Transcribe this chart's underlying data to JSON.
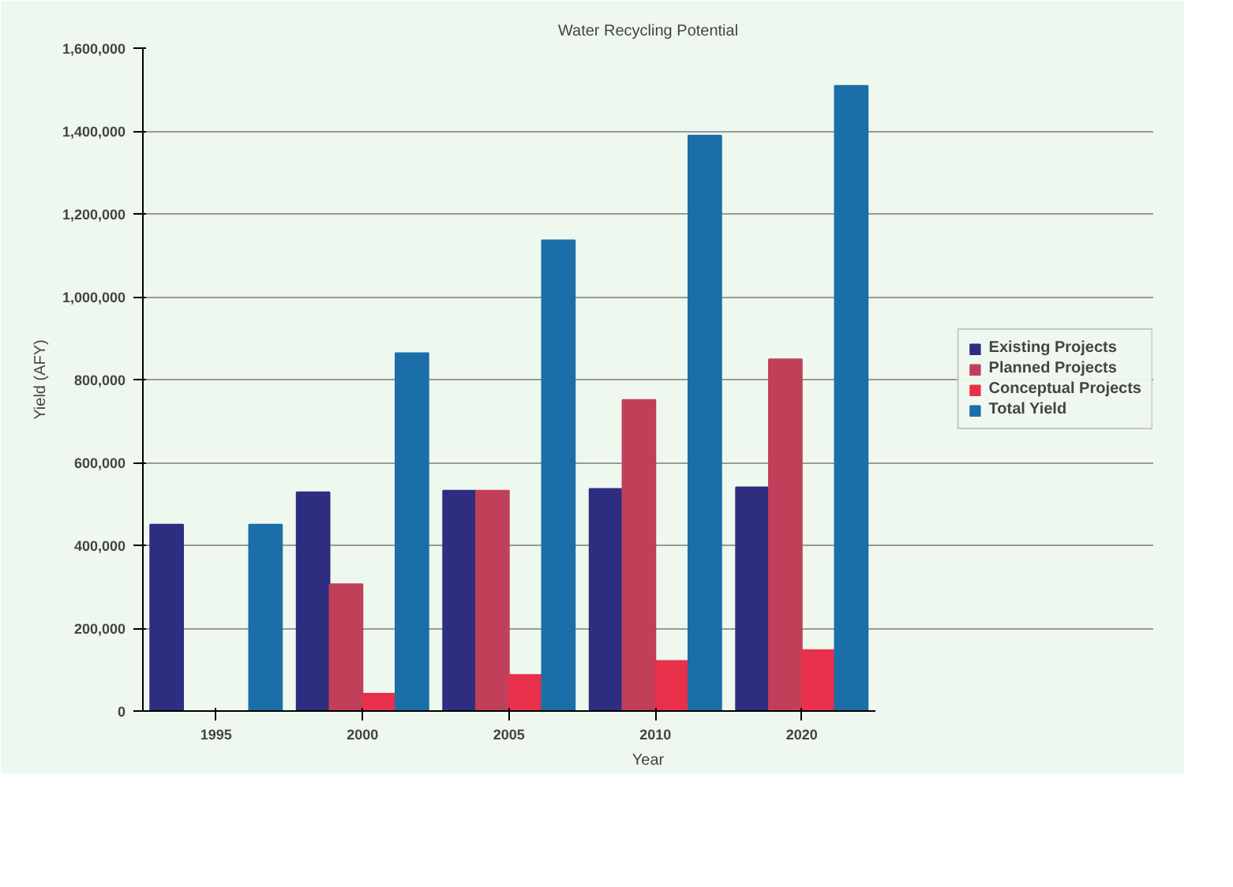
{
  "chart_data": {
    "type": "bar",
    "title": "Water Recycling Potential",
    "xlabel": "Year",
    "ylabel": "Yield (AFY)",
    "categories": [
      "1995",
      "2000",
      "2005",
      "2010",
      "2020"
    ],
    "series": [
      {
        "name": "Existing Projects",
        "color": "#2e2e80",
        "values": [
          450000,
          528000,
          532000,
          536000,
          540000
        ]
      },
      {
        "name": "Planned Projects",
        "color": "#c0405a",
        "values": [
          null,
          306000,
          532000,
          751000,
          849000
        ]
      },
      {
        "name": "Conceptual Projects",
        "color": "#e8304a",
        "values": [
          null,
          42000,
          87000,
          121000,
          147000
        ]
      },
      {
        "name": "Total Yield",
        "color": "#1a6fa8",
        "values": [
          450000,
          864000,
          1136000,
          1389000,
          1509000
        ]
      }
    ],
    "ylim": [
      0,
      1600000
    ],
    "yticks": [
      {
        "value": 0,
        "label": "0"
      },
      {
        "value": 200000,
        "label": "200,000"
      },
      {
        "value": 400000,
        "label": "400,000"
      },
      {
        "value": 600000,
        "label": "600,000"
      },
      {
        "value": 800000,
        "label": "800,000"
      },
      {
        "value": 1000000,
        "label": "1,000,000"
      },
      {
        "value": 1200000,
        "label": "1,200,000"
      },
      {
        "value": 1400000,
        "label": "1,400,000"
      },
      {
        "value": 1600000,
        "label": "1,600,000"
      }
    ],
    "grid": "y",
    "legend": "right"
  }
}
